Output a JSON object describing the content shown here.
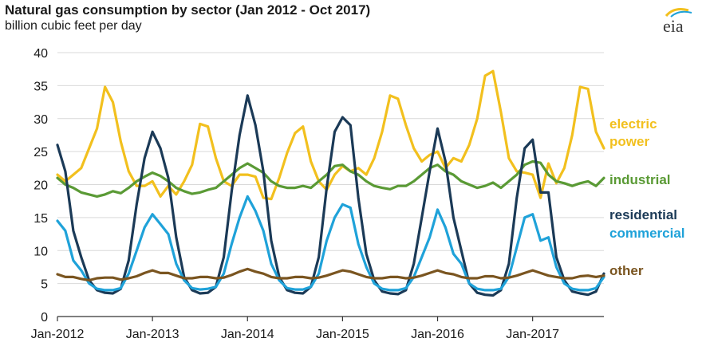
{
  "chart_data": {
    "type": "line",
    "title": "Natural gas consumption by sector (Jan 2012 - Oct 2017)",
    "subtitle": "billion cubic feet per day",
    "logo_text": "eia",
    "xlabel": "",
    "ylabel": "",
    "ylim": [
      0,
      40
    ],
    "yticks": [
      0,
      5,
      10,
      15,
      20,
      25,
      30,
      35,
      40
    ],
    "grid": true,
    "x_ticks": [
      "Jan-2012",
      "Jan-2013",
      "Jan-2014",
      "Jan-2015",
      "Jan-2016",
      "Jan-2017"
    ],
    "x": [
      "2012-01",
      "2012-02",
      "2012-03",
      "2012-04",
      "2012-05",
      "2012-06",
      "2012-07",
      "2012-08",
      "2012-09",
      "2012-10",
      "2012-11",
      "2012-12",
      "2013-01",
      "2013-02",
      "2013-03",
      "2013-04",
      "2013-05",
      "2013-06",
      "2013-07",
      "2013-08",
      "2013-09",
      "2013-10",
      "2013-11",
      "2013-12",
      "2014-01",
      "2014-02",
      "2014-03",
      "2014-04",
      "2014-05",
      "2014-06",
      "2014-07",
      "2014-08",
      "2014-09",
      "2014-10",
      "2014-11",
      "2014-12",
      "2015-01",
      "2015-02",
      "2015-03",
      "2015-04",
      "2015-05",
      "2015-06",
      "2015-07",
      "2015-08",
      "2015-09",
      "2015-10",
      "2015-11",
      "2015-12",
      "2016-01",
      "2016-02",
      "2016-03",
      "2016-04",
      "2016-05",
      "2016-06",
      "2016-07",
      "2016-08",
      "2016-09",
      "2016-10",
      "2016-11",
      "2016-12",
      "2017-01",
      "2017-02",
      "2017-03",
      "2017-04",
      "2017-05",
      "2017-06",
      "2017-07",
      "2017-08",
      "2017-09",
      "2017-10"
    ],
    "series": [
      {
        "name": "electric power",
        "label_lines": [
          "electric",
          "power"
        ],
        "color": "#f2c01e",
        "values": [
          21.5,
          20.5,
          21.5,
          22.5,
          25.5,
          28.5,
          34.8,
          32.5,
          26.5,
          22.0,
          19.8,
          19.8,
          20.5,
          18.2,
          19.8,
          18.5,
          20.5,
          23.0,
          29.2,
          28.8,
          24.0,
          20.5,
          19.8,
          21.5,
          21.5,
          21.2,
          18.0,
          17.8,
          21.0,
          24.8,
          27.8,
          28.8,
          23.5,
          20.5,
          19.2,
          21.5,
          22.8,
          22.0,
          22.5,
          21.5,
          24.0,
          28.0,
          33.5,
          33.0,
          29.0,
          25.5,
          23.5,
          24.5,
          25.0,
          22.5,
          24.0,
          23.5,
          26.0,
          30.0,
          36.5,
          37.2,
          31.0,
          24.0,
          22.0,
          21.8,
          21.5,
          18.0,
          23.2,
          20.2,
          22.5,
          27.5,
          34.8,
          34.5,
          28.0,
          25.5
        ]
      },
      {
        "name": "industrial",
        "color": "#5a9a35",
        "values": [
          21.0,
          20.0,
          19.5,
          18.8,
          18.5,
          18.2,
          18.5,
          19.0,
          18.7,
          19.5,
          20.5,
          21.2,
          21.8,
          21.3,
          20.5,
          19.5,
          19.0,
          18.6,
          18.8,
          19.2,
          19.5,
          20.5,
          21.5,
          22.5,
          23.2,
          22.5,
          21.8,
          20.5,
          19.8,
          19.5,
          19.5,
          19.8,
          19.5,
          20.5,
          21.5,
          22.8,
          23.0,
          22.0,
          21.5,
          20.5,
          19.8,
          19.5,
          19.3,
          19.8,
          19.8,
          20.5,
          21.5,
          22.5,
          23.0,
          22.0,
          21.5,
          20.5,
          20.0,
          19.5,
          19.8,
          20.3,
          19.5,
          20.5,
          21.5,
          23.0,
          23.5,
          23.3,
          21.5,
          20.5,
          20.2,
          19.8,
          20.2,
          20.5,
          19.8,
          21.0
        ]
      },
      {
        "name": "residential",
        "color": "#1b3a57",
        "values": [
          26.0,
          22.0,
          13.0,
          9.0,
          5.5,
          4.0,
          3.6,
          3.5,
          4.2,
          8.5,
          17.0,
          24.0,
          28.0,
          25.5,
          21.0,
          12.0,
          6.0,
          4.0,
          3.5,
          3.6,
          4.5,
          9.0,
          19.0,
          27.5,
          33.5,
          29.0,
          22.0,
          11.5,
          6.0,
          4.0,
          3.6,
          3.5,
          4.5,
          9.0,
          19.5,
          28.0,
          30.2,
          29.0,
          18.0,
          9.5,
          5.5,
          3.8,
          3.5,
          3.4,
          4.0,
          8.0,
          15.0,
          22.0,
          28.5,
          23.5,
          15.0,
          10.0,
          5.0,
          3.6,
          3.3,
          3.2,
          4.0,
          8.0,
          18.0,
          25.5,
          26.8,
          18.8,
          18.8,
          9.0,
          5.5,
          3.8,
          3.5,
          3.3,
          3.8,
          6.5
        ]
      },
      {
        "name": "commercial",
        "color": "#1fa2d9",
        "values": [
          14.5,
          13.0,
          8.5,
          7.0,
          5.0,
          4.2,
          4.0,
          4.0,
          4.3,
          6.5,
          10.0,
          13.5,
          15.5,
          14.0,
          12.5,
          8.0,
          5.5,
          4.3,
          4.1,
          4.2,
          4.5,
          6.5,
          11.0,
          15.0,
          18.2,
          16.0,
          13.0,
          8.0,
          5.5,
          4.3,
          4.1,
          4.1,
          4.5,
          6.5,
          11.5,
          15.0,
          17.0,
          16.5,
          11.0,
          7.5,
          5.0,
          4.2,
          4.0,
          4.0,
          4.3,
          6.0,
          9.0,
          12.0,
          16.2,
          13.5,
          9.5,
          8.0,
          5.0,
          4.2,
          4.0,
          4.0,
          4.2,
          6.0,
          10.5,
          15.0,
          15.5,
          11.5,
          12.0,
          7.5,
          5.0,
          4.2,
          4.0,
          4.0,
          4.3,
          6.0
        ]
      },
      {
        "name": "other",
        "color": "#7a5520",
        "values": [
          6.4,
          6.0,
          6.0,
          5.7,
          5.5,
          5.8,
          5.9,
          5.9,
          5.6,
          5.8,
          6.1,
          6.6,
          7.0,
          6.6,
          6.6,
          6.2,
          5.8,
          5.8,
          6.0,
          6.0,
          5.8,
          5.9,
          6.3,
          6.8,
          7.2,
          6.8,
          6.5,
          6.0,
          5.8,
          5.8,
          6.0,
          6.0,
          5.8,
          5.9,
          6.2,
          6.6,
          7.0,
          6.8,
          6.4,
          6.0,
          5.8,
          5.8,
          6.0,
          6.0,
          5.8,
          5.9,
          6.2,
          6.6,
          7.0,
          6.6,
          6.4,
          6.0,
          5.8,
          5.8,
          6.1,
          6.1,
          5.8,
          5.9,
          6.2,
          6.6,
          7.0,
          6.6,
          6.2,
          6.0,
          5.8,
          5.8,
          6.1,
          6.2,
          6.0,
          6.2
        ]
      }
    ]
  }
}
